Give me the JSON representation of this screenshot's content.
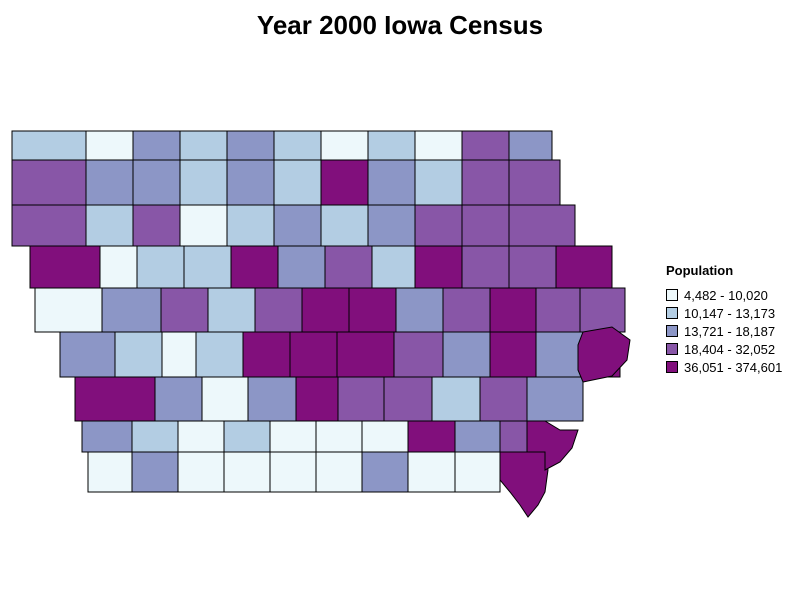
{
  "title": "Year 2000 Iowa Census",
  "legend": {
    "title": "Population",
    "items": [
      {
        "label": "4,482 - 10,020",
        "color": "#edf8fb"
      },
      {
        "label": "10,147 - 13,173",
        "color": "#b3cde3"
      },
      {
        "label": "13,721 - 18,187",
        "color": "#8c96c6"
      },
      {
        "label": "18,404 - 32,052",
        "color": "#8856a7"
      },
      {
        "label": "36,051 - 374,601",
        "color": "#810f7c"
      }
    ]
  },
  "counties": {
    "rows": [
      [
        1,
        0,
        2,
        1,
        2,
        1,
        0,
        1,
        0,
        3,
        2
      ],
      [
        3,
        2,
        2,
        1,
        2,
        1,
        4,
        2,
        1,
        3,
        3
      ],
      [
        3,
        1,
        3,
        0,
        1,
        2,
        1,
        2,
        3,
        3,
        3
      ],
      [
        4,
        0,
        1,
        1,
        4,
        2,
        3,
        1,
        4,
        3,
        3,
        4
      ],
      [
        0,
        2,
        3,
        1,
        3,
        4,
        4,
        2,
        3,
        4,
        3,
        3
      ],
      [
        2,
        1,
        0,
        1,
        4,
        4,
        4,
        3,
        2,
        4,
        2,
        4
      ],
      [
        4,
        2,
        0,
        2,
        4,
        3,
        3,
        1,
        3,
        2
      ],
      [
        2,
        1,
        0,
        1,
        0,
        0,
        0,
        4,
        2,
        3,
        4
      ],
      [
        0,
        2,
        0,
        0,
        0,
        0,
        2,
        0,
        0,
        4
      ]
    ]
  }
}
